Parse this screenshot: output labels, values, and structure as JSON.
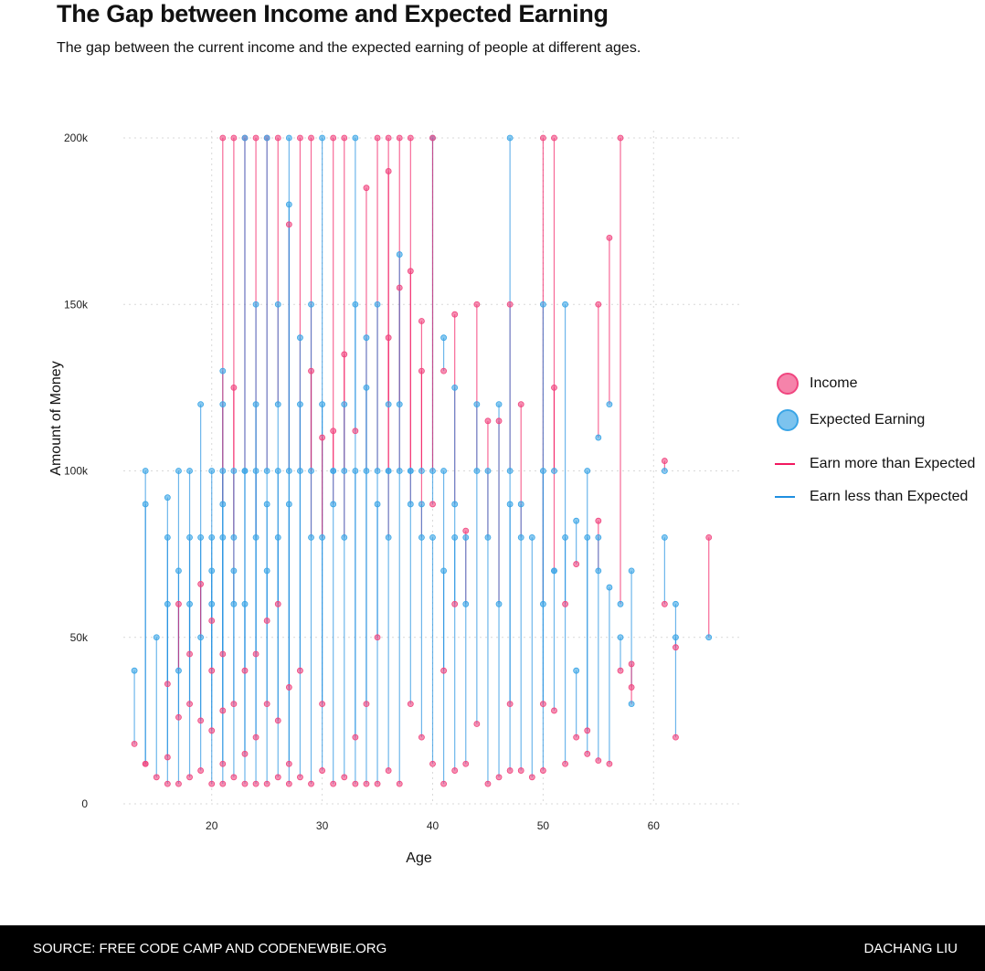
{
  "title": "The Gap between Income and Expected Earning",
  "subtitle": "The gap between the current income and the expected earning of people at different ages.",
  "footer": {
    "source": "SOURCE: FREE CODE CAMP AND CODENEWBIE.ORG",
    "author": "DACHANG LIU"
  },
  "colors": {
    "income": "#f0457f",
    "expected": "#3aa5e6",
    "more_line": "#f2185f",
    "less_line": "#1e8fe0",
    "grid": "#d9d9d9"
  },
  "legend": {
    "income": "Income",
    "expected": "Expected Earning",
    "more": "Earn more than Expected",
    "less": "Earn less than Expected"
  },
  "chart_data": {
    "type": "scatter",
    "subtype": "dumbbell",
    "xlabel": "Age",
    "ylabel": "Amount of Money",
    "xlim": [
      12,
      68
    ],
    "ylim": [
      0,
      200000
    ],
    "x_ticks": [
      20,
      30,
      40,
      50,
      60
    ],
    "y_ticks": [
      0,
      50000,
      100000,
      150000,
      200000
    ],
    "y_tick_labels": [
      "0",
      "50k",
      "100k",
      "150k",
      "200k"
    ],
    "grid": true,
    "legend_position": "right",
    "series": [
      {
        "name": "Income",
        "kind": "point"
      },
      {
        "name": "Expected Earning",
        "kind": "point"
      },
      {
        "name": "Earn more than Expected",
        "kind": "segment"
      },
      {
        "name": "Earn less than Expected",
        "kind": "segment"
      }
    ],
    "pairs": [
      {
        "age": 13,
        "income": 18000,
        "expected": 40000
      },
      {
        "age": 14,
        "income": 12000,
        "expected": 100000
      },
      {
        "age": 14,
        "income": 12000,
        "expected": 90000
      },
      {
        "age": 15,
        "income": 8000,
        "expected": 50000
      },
      {
        "age": 16,
        "income": 6000,
        "expected": 92000
      },
      {
        "age": 16,
        "income": 14000,
        "expected": 80000
      },
      {
        "age": 16,
        "income": 36000,
        "expected": 60000
      },
      {
        "age": 17,
        "income": 6000,
        "expected": 100000
      },
      {
        "age": 17,
        "income": 26000,
        "expected": 70000
      },
      {
        "age": 17,
        "income": 60000,
        "expected": 40000
      },
      {
        "age": 18,
        "income": 8000,
        "expected": 100000
      },
      {
        "age": 18,
        "income": 30000,
        "expected": 80000
      },
      {
        "age": 18,
        "income": 45000,
        "expected": 60000
      },
      {
        "age": 19,
        "income": 10000,
        "expected": 120000
      },
      {
        "age": 19,
        "income": 25000,
        "expected": 80000
      },
      {
        "age": 19,
        "income": 66000,
        "expected": 50000
      },
      {
        "age": 20,
        "income": 6000,
        "expected": 100000
      },
      {
        "age": 20,
        "income": 22000,
        "expected": 80000
      },
      {
        "age": 20,
        "income": 40000,
        "expected": 60000
      },
      {
        "age": 20,
        "income": 55000,
        "expected": 70000
      },
      {
        "age": 21,
        "income": 6000,
        "expected": 130000
      },
      {
        "age": 21,
        "income": 12000,
        "expected": 120000
      },
      {
        "age": 21,
        "income": 200000,
        "expected": 90000
      },
      {
        "age": 21,
        "income": 28000,
        "expected": 100000
      },
      {
        "age": 21,
        "income": 45000,
        "expected": 80000
      },
      {
        "age": 22,
        "income": 200000,
        "expected": 60000
      },
      {
        "age": 22,
        "income": 125000,
        "expected": 80000
      },
      {
        "age": 22,
        "income": 8000,
        "expected": 100000
      },
      {
        "age": 22,
        "income": 30000,
        "expected": 70000
      },
      {
        "age": 23,
        "income": 200000,
        "expected": 100000
      },
      {
        "age": 23,
        "income": 6000,
        "expected": 200000
      },
      {
        "age": 23,
        "income": 15000,
        "expected": 100000
      },
      {
        "age": 23,
        "income": 40000,
        "expected": 60000
      },
      {
        "age": 24,
        "income": 200000,
        "expected": 80000
      },
      {
        "age": 24,
        "income": 6000,
        "expected": 150000
      },
      {
        "age": 24,
        "income": 20000,
        "expected": 120000
      },
      {
        "age": 24,
        "income": 45000,
        "expected": 100000
      },
      {
        "age": 25,
        "income": 200000,
        "expected": 100000
      },
      {
        "age": 25,
        "income": 6000,
        "expected": 200000
      },
      {
        "age": 25,
        "income": 30000,
        "expected": 90000
      },
      {
        "age": 25,
        "income": 55000,
        "expected": 70000
      },
      {
        "age": 26,
        "income": 200000,
        "expected": 120000
      },
      {
        "age": 26,
        "income": 8000,
        "expected": 150000
      },
      {
        "age": 26,
        "income": 25000,
        "expected": 100000
      },
      {
        "age": 26,
        "income": 60000,
        "expected": 80000
      },
      {
        "age": 27,
        "income": 174000,
        "expected": 100000
      },
      {
        "age": 27,
        "income": 6000,
        "expected": 200000
      },
      {
        "age": 27,
        "income": 12000,
        "expected": 180000
      },
      {
        "age": 27,
        "income": 35000,
        "expected": 90000
      },
      {
        "age": 28,
        "income": 200000,
        "expected": 100000
      },
      {
        "age": 28,
        "income": 8000,
        "expected": 140000
      },
      {
        "age": 28,
        "income": 40000,
        "expected": 120000
      },
      {
        "age": 29,
        "income": 200000,
        "expected": 80000
      },
      {
        "age": 29,
        "income": 6000,
        "expected": 150000
      },
      {
        "age": 29,
        "income": 130000,
        "expected": 100000
      },
      {
        "age": 30,
        "income": 10000,
        "expected": 200000
      },
      {
        "age": 30,
        "income": 30000,
        "expected": 120000
      },
      {
        "age": 30,
        "income": 110000,
        "expected": 80000
      },
      {
        "age": 31,
        "income": 200000,
        "expected": 100000
      },
      {
        "age": 31,
        "income": 112000,
        "expected": 90000
      },
      {
        "age": 31,
        "income": 6000,
        "expected": 100000
      },
      {
        "age": 32,
        "income": 200000,
        "expected": 100000
      },
      {
        "age": 32,
        "income": 135000,
        "expected": 80000
      },
      {
        "age": 32,
        "income": 8000,
        "expected": 120000
      },
      {
        "age": 33,
        "income": 112000,
        "expected": 150000
      },
      {
        "age": 33,
        "income": 6000,
        "expected": 200000
      },
      {
        "age": 33,
        "income": 20000,
        "expected": 100000
      },
      {
        "age": 34,
        "income": 185000,
        "expected": 100000
      },
      {
        "age": 34,
        "income": 6000,
        "expected": 140000
      },
      {
        "age": 34,
        "income": 30000,
        "expected": 125000
      },
      {
        "age": 35,
        "income": 200000,
        "expected": 100000
      },
      {
        "age": 35,
        "income": 6000,
        "expected": 150000
      },
      {
        "age": 35,
        "income": 50000,
        "expected": 90000
      },
      {
        "age": 36,
        "income": 200000,
        "expected": 120000
      },
      {
        "age": 36,
        "income": 190000,
        "expected": 100000
      },
      {
        "age": 36,
        "income": 140000,
        "expected": 80000
      },
      {
        "age": 36,
        "income": 10000,
        "expected": 100000
      },
      {
        "age": 37,
        "income": 200000,
        "expected": 100000
      },
      {
        "age": 37,
        "income": 155000,
        "expected": 120000
      },
      {
        "age": 37,
        "income": 6000,
        "expected": 165000
      },
      {
        "age": 38,
        "income": 200000,
        "expected": 100000
      },
      {
        "age": 38,
        "income": 160000,
        "expected": 90000
      },
      {
        "age": 38,
        "income": 30000,
        "expected": 100000
      },
      {
        "age": 39,
        "income": 145000,
        "expected": 80000
      },
      {
        "age": 39,
        "income": 130000,
        "expected": 100000
      },
      {
        "age": 39,
        "income": 20000,
        "expected": 90000
      },
      {
        "age": 40,
        "income": 90000,
        "expected": 200000
      },
      {
        "age": 40,
        "income": 200000,
        "expected": 100000
      },
      {
        "age": 40,
        "income": 12000,
        "expected": 80000
      },
      {
        "age": 41,
        "income": 130000,
        "expected": 140000
      },
      {
        "age": 41,
        "income": 6000,
        "expected": 100000
      },
      {
        "age": 41,
        "income": 40000,
        "expected": 70000
      },
      {
        "age": 42,
        "income": 147000,
        "expected": 90000
      },
      {
        "age": 42,
        "income": 10000,
        "expected": 125000
      },
      {
        "age": 42,
        "income": 60000,
        "expected": 80000
      },
      {
        "age": 43,
        "income": 82000,
        "expected": 60000
      },
      {
        "age": 43,
        "income": 12000,
        "expected": 80000
      },
      {
        "age": 44,
        "income": 150000,
        "expected": 100000
      },
      {
        "age": 44,
        "income": 24000,
        "expected": 120000
      },
      {
        "age": 45,
        "income": 115000,
        "expected": 80000
      },
      {
        "age": 45,
        "income": 6000,
        "expected": 100000
      },
      {
        "age": 46,
        "income": 115000,
        "expected": 60000
      },
      {
        "age": 46,
        "income": 8000,
        "expected": 120000
      },
      {
        "age": 47,
        "income": 150000,
        "expected": 100000
      },
      {
        "age": 47,
        "income": 10000,
        "expected": 200000
      },
      {
        "age": 47,
        "income": 30000,
        "expected": 90000
      },
      {
        "age": 48,
        "income": 120000,
        "expected": 80000
      },
      {
        "age": 48,
        "income": 10000,
        "expected": 90000
      },
      {
        "age": 49,
        "income": 8000,
        "expected": 80000
      },
      {
        "age": 50,
        "income": 200000,
        "expected": 60000
      },
      {
        "age": 50,
        "income": 10000,
        "expected": 150000
      },
      {
        "age": 50,
        "income": 30000,
        "expected": 100000
      },
      {
        "age": 51,
        "income": 200000,
        "expected": 70000
      },
      {
        "age": 51,
        "income": 125000,
        "expected": 100000
      },
      {
        "age": 51,
        "income": 28000,
        "expected": 70000
      },
      {
        "age": 52,
        "income": 60000,
        "expected": 150000
      },
      {
        "age": 52,
        "income": 12000,
        "expected": 80000
      },
      {
        "age": 53,
        "income": 72000,
        "expected": 85000
      },
      {
        "age": 53,
        "income": 20000,
        "expected": 40000
      },
      {
        "age": 54,
        "income": 15000,
        "expected": 100000
      },
      {
        "age": 54,
        "income": 22000,
        "expected": 80000
      },
      {
        "age": 55,
        "income": 150000,
        "expected": 110000
      },
      {
        "age": 55,
        "income": 85000,
        "expected": 70000
      },
      {
        "age": 55,
        "income": 13000,
        "expected": 80000
      },
      {
        "age": 56,
        "income": 170000,
        "expected": 120000
      },
      {
        "age": 56,
        "income": 12000,
        "expected": 65000
      },
      {
        "age": 57,
        "income": 200000,
        "expected": 60000
      },
      {
        "age": 57,
        "income": 40000,
        "expected": 50000
      },
      {
        "age": 58,
        "income": 35000,
        "expected": 70000
      },
      {
        "age": 58,
        "income": 42000,
        "expected": 30000
      },
      {
        "age": 61,
        "income": 103000,
        "expected": 100000
      },
      {
        "age": 61,
        "income": 60000,
        "expected": 80000
      },
      {
        "age": 62,
        "income": 20000,
        "expected": 60000
      },
      {
        "age": 62,
        "income": 47000,
        "expected": 50000
      },
      {
        "age": 65,
        "income": 80000,
        "expected": 50000
      }
    ]
  }
}
